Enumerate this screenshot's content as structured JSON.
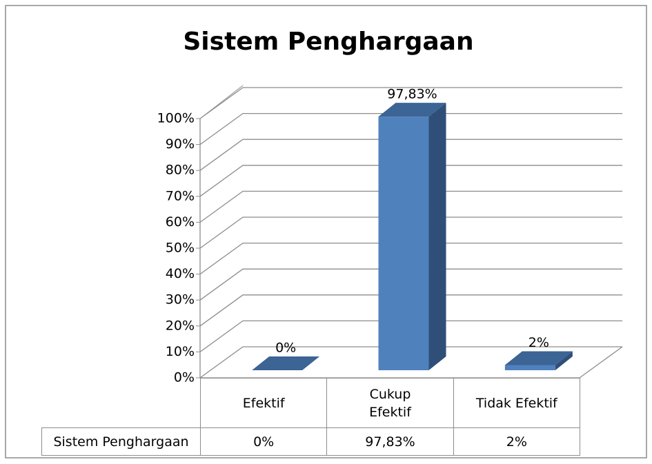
{
  "chart_data": {
    "type": "bar3d",
    "title": "Sistem Penghargaan",
    "categories": [
      "Efektif",
      "Cukup Efektif",
      "Tidak Efektif"
    ],
    "series": [
      {
        "name": "Sistem Penghargaan",
        "color": "#4f81bd",
        "values": [
          0,
          97.83,
          2
        ],
        "value_labels": [
          "0%",
          "97,83%",
          "2%"
        ]
      }
    ],
    "ylim": [
      0,
      100
    ],
    "yticks": [
      {
        "value": 0,
        "label": "0%"
      },
      {
        "value": 10,
        "label": "10%"
      },
      {
        "value": 20,
        "label": "20%"
      },
      {
        "value": 30,
        "label": "30%"
      },
      {
        "value": 40,
        "label": "40%"
      },
      {
        "value": 50,
        "label": "50%"
      },
      {
        "value": 60,
        "label": "60%"
      },
      {
        "value": 70,
        "label": "70%"
      },
      {
        "value": 80,
        "label": "80%"
      },
      {
        "value": 90,
        "label": "90%"
      },
      {
        "value": 100,
        "label": "100%"
      }
    ],
    "grid": true,
    "data_table": true
  }
}
